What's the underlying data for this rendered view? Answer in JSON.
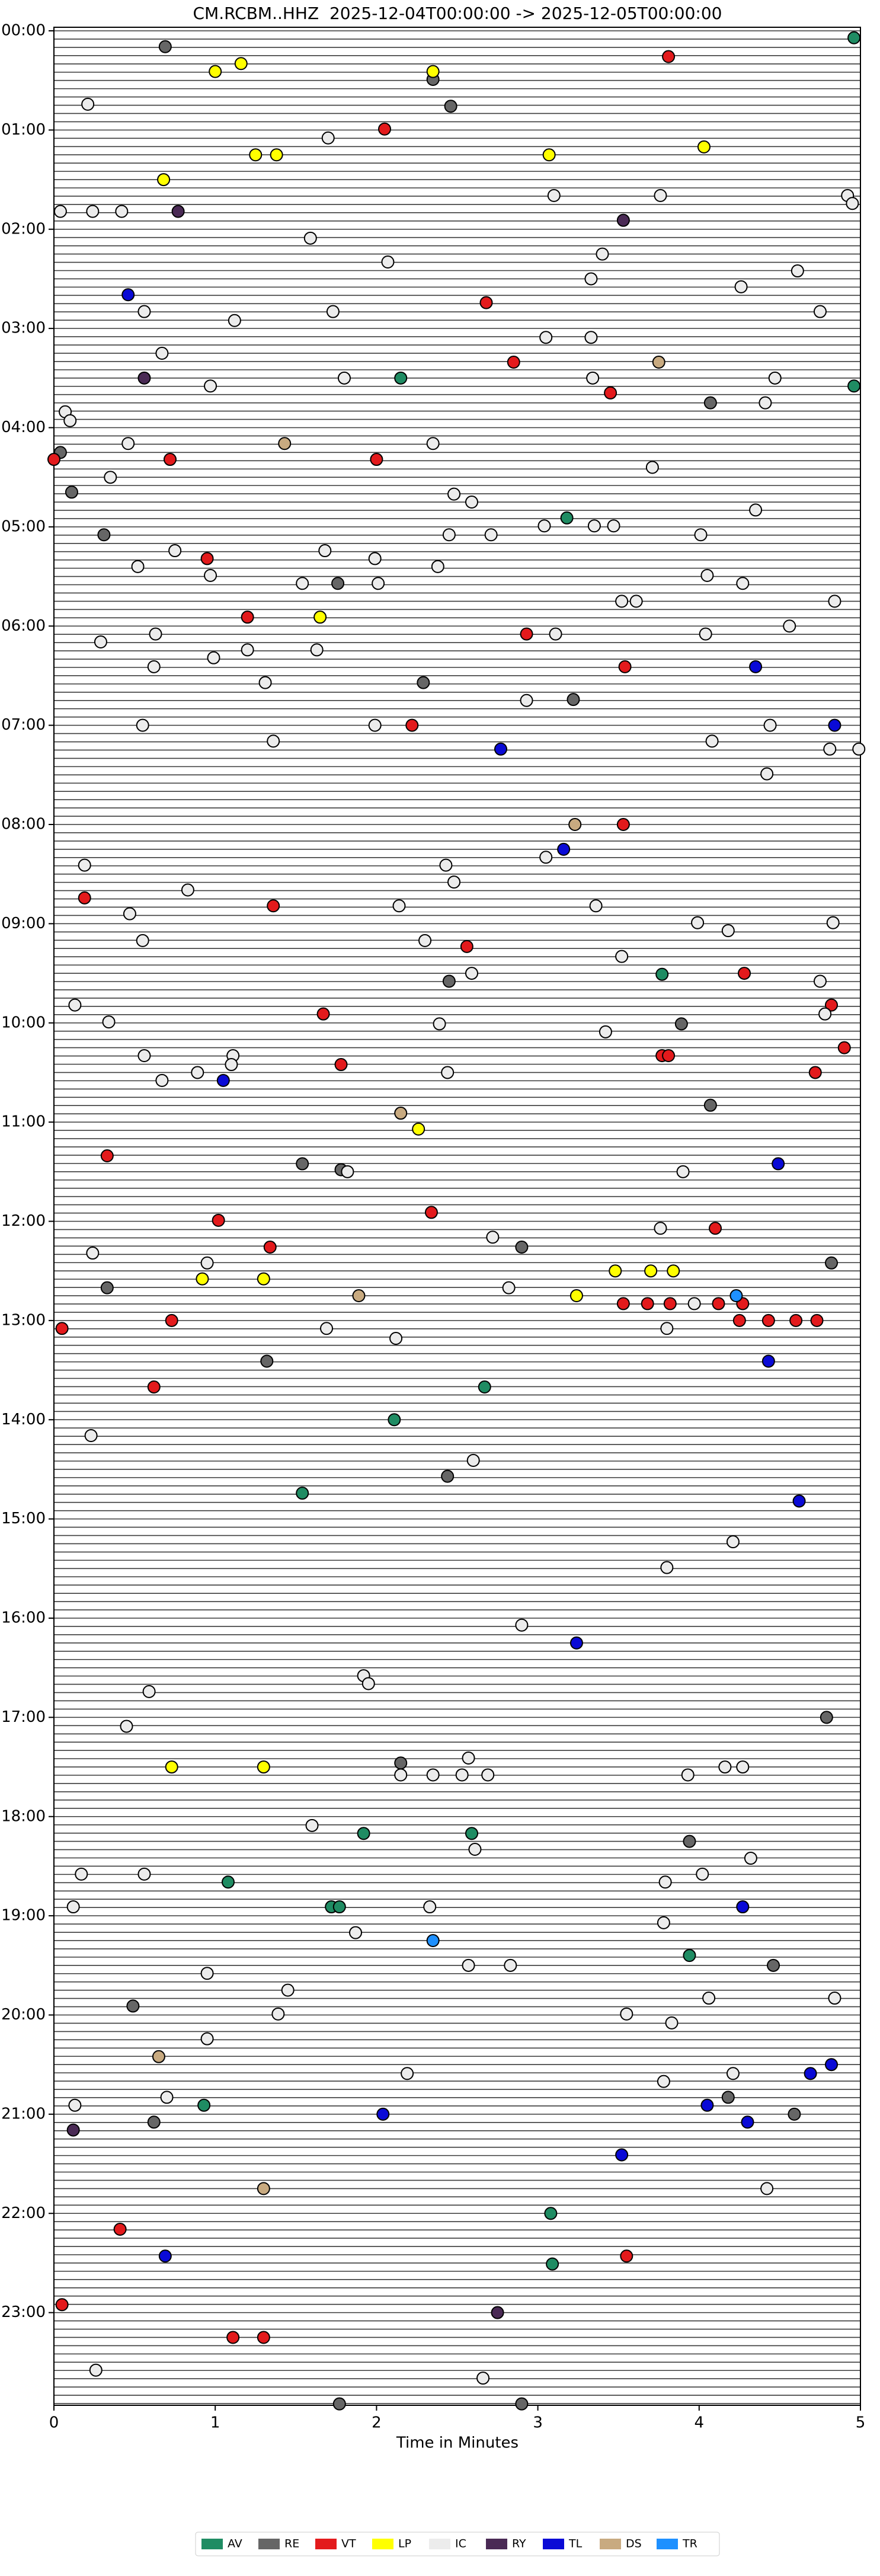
{
  "chart_data": {
    "type": "scatter",
    "title": "CM.RCBM..HHZ  2025-12-04T00:00:00 -> 2025-12-05T00:00:00",
    "xlabel": "Time in Minutes",
    "xlim": [
      0,
      5
    ],
    "xticks": [
      0,
      1,
      2,
      3,
      4,
      5
    ],
    "ylim": [
      24,
      0
    ],
    "yticks": [
      {
        "value": 0,
        "label": "00:00"
      },
      {
        "value": 1,
        "label": "01:00"
      },
      {
        "value": 2,
        "label": "02:00"
      },
      {
        "value": 3,
        "label": "03:00"
      },
      {
        "value": 4,
        "label": "04:00"
      },
      {
        "value": 5,
        "label": "05:00"
      },
      {
        "value": 6,
        "label": "06:00"
      },
      {
        "value": 7,
        "label": "07:00"
      },
      {
        "value": 8,
        "label": "08:00"
      },
      {
        "value": 9,
        "label": "09:00"
      },
      {
        "value": 10,
        "label": "10:00"
      },
      {
        "value": 11,
        "label": "11:00"
      },
      {
        "value": 12,
        "label": "12:00"
      },
      {
        "value": 13,
        "label": "13:00"
      },
      {
        "value": 14,
        "label": "14:00"
      },
      {
        "value": 15,
        "label": "15:00"
      },
      {
        "value": 16,
        "label": "16:00"
      },
      {
        "value": 17,
        "label": "17:00"
      },
      {
        "value": 18,
        "label": "18:00"
      },
      {
        "value": 19,
        "label": "19:00"
      },
      {
        "value": 20,
        "label": "20:00"
      },
      {
        "value": 21,
        "label": "21:00"
      },
      {
        "value": 22,
        "label": "22:00"
      },
      {
        "value": 23,
        "label": "23:00"
      }
    ],
    "legend": "lower center",
    "series": [
      {
        "name": "AV",
        "color": "#1f8c63",
        "x": [
          4.96,
          2.15,
          4.96,
          3.18,
          3.77,
          2.67,
          2.11,
          1.54,
          1.92,
          2.59,
          1.08,
          1.72,
          1.77,
          3.94,
          0.93,
          3.08,
          3.09
        ],
        "values": [
          0.07,
          3.5,
          3.58,
          4.91,
          9.51,
          13.67,
          14.0,
          14.74,
          18.17,
          18.17,
          18.66,
          18.91,
          18.91,
          19.4,
          20.91,
          22.0,
          22.51
        ]
      },
      {
        "name": "RE",
        "color": "#666666",
        "x": [
          0.69,
          2.35,
          2.46,
          4.07,
          0.04,
          0.11,
          0.31,
          1.76,
          2.29,
          3.22,
          2.45,
          3.89,
          4.07,
          1.54,
          1.78,
          0.33,
          2.9,
          4.82,
          1.32,
          2.44,
          4.79,
          2.15,
          3.94,
          0.49,
          4.46,
          4.18,
          0.62,
          4.59,
          1.77,
          2.9
        ],
        "values": [
          0.16,
          0.49,
          0.76,
          3.75,
          4.25,
          4.65,
          5.08,
          5.57,
          6.57,
          6.74,
          9.58,
          10.01,
          10.83,
          11.42,
          11.48,
          12.67,
          12.26,
          12.42,
          13.41,
          14.57,
          17.0,
          17.46,
          18.25,
          19.91,
          19.5,
          20.83,
          21.08,
          21.0,
          23.92,
          23.92
        ]
      },
      {
        "name": "VT",
        "color": "#e31a1c",
        "x": [
          3.81,
          2.05,
          2.68,
          2.85,
          3.45,
          0,
          0.72,
          2.0,
          0.95,
          1.2,
          2.93,
          3.54,
          2.22,
          3.53,
          0.19,
          1.36,
          2.56,
          4.28,
          4.82,
          1.67,
          4.9,
          3.77,
          3.81,
          1.78,
          4.72,
          0.33,
          2.34,
          1.02,
          4.1,
          1.34,
          3.53,
          3.68,
          3.82,
          4.12,
          4.27,
          4.25,
          4.43,
          4.6,
          4.73,
          0.05,
          0.73,
          0.62,
          0.41,
          3.55,
          0.05,
          1.11,
          1.3
        ],
        "values": [
          0.26,
          0.99,
          2.74,
          3.34,
          3.65,
          4.32,
          4.32,
          4.32,
          5.32,
          5.91,
          6.08,
          6.41,
          7.0,
          8.0,
          8.74,
          8.82,
          9.23,
          9.5,
          9.82,
          9.91,
          10.25,
          10.33,
          10.33,
          10.42,
          10.5,
          11.34,
          11.91,
          11.99,
          12.07,
          12.26,
          12.83,
          12.83,
          12.83,
          12.83,
          12.83,
          13.0,
          13.0,
          13.0,
          13.0,
          13.08,
          13.0,
          13.67,
          22.16,
          22.43,
          22.92,
          23.25,
          23.25
        ]
      },
      {
        "name": "LP",
        "color": "#ffff00",
        "x": [
          1.0,
          1.16,
          2.35,
          1.25,
          1.38,
          3.07,
          4.03,
          0.68,
          1.65,
          2.26,
          3.48,
          3.7,
          3.84,
          0.92,
          1.3,
          3.24,
          0.73,
          1.3
        ],
        "values": [
          0.41,
          0.33,
          0.41,
          1.25,
          1.25,
          1.25,
          1.17,
          1.5,
          5.91,
          11.07,
          12.5,
          12.5,
          12.5,
          12.58,
          12.58,
          12.75,
          17.5,
          17.5
        ]
      },
      {
        "name": "IC",
        "color": "#ececec",
        "x": [
          0.21,
          1.7,
          0.04,
          0.24,
          0.42,
          3.1,
          3.76,
          4.92,
          4.95,
          1.59,
          2.07,
          3.4,
          4.61,
          4.26,
          3.33,
          0.56,
          1.73,
          4.75,
          1.12,
          3.05,
          3.33,
          0.67,
          1.8,
          0.97,
          3.34,
          4.47,
          4.41,
          0.07,
          0.1,
          0.46,
          2.35,
          3.71,
          0.35,
          2.48,
          2.59,
          4.35,
          2.71,
          2.45,
          3.04,
          3.35,
          3.47,
          4.01,
          1.68,
          0.75,
          1.99,
          0.52,
          0.97,
          2.38,
          4.05,
          1.54,
          2.01,
          4.27,
          3.52,
          3.61,
          4.84,
          4.56,
          0.29,
          0.63,
          3.11,
          4.04,
          1.2,
          1.63,
          0.99,
          0.62,
          1.31,
          2.93,
          0.55,
          1.99,
          4.44,
          1.36,
          4.08,
          4.81,
          4.99,
          4.42,
          3.05,
          0.19,
          2.43,
          2.48,
          0.83,
          2.14,
          3.36,
          0.47,
          3.99,
          4.18,
          4.83,
          0.55,
          2.3,
          3.52,
          2.59,
          4.75,
          0.13,
          4.78,
          0.34,
          2.39,
          3.42,
          1.11,
          0.56,
          1.1,
          0.89,
          0.67,
          2.44,
          3.9,
          1.82,
          3.76,
          2.72,
          0.24,
          0.95,
          2.82,
          3.97,
          3.8,
          1.69,
          2.12,
          0.23,
          2.6,
          4.21,
          3.8,
          2.9,
          0.59,
          1.92,
          1.95,
          0.45,
          2.57,
          2.15,
          2.35,
          2.53,
          2.69,
          3.93,
          4.16,
          4.27,
          1.6,
          2.61,
          4.32,
          0.17,
          0.56,
          3.79,
          4.02,
          0.12,
          2.33,
          3.78,
          1.87,
          2.57,
          2.83,
          0.95,
          1.45,
          4.06,
          4.84,
          1.39,
          3.55,
          3.83,
          0.95,
          2.19,
          4.21,
          3.78,
          0.7,
          0.13,
          4.42,
          0.26,
          2.66
        ],
        "values": [
          0.74,
          1.08,
          1.82,
          1.82,
          1.82,
          1.66,
          1.66,
          1.66,
          1.74,
          2.09,
          2.33,
          2.25,
          2.42,
          2.58,
          2.5,
          2.83,
          2.83,
          2.83,
          2.92,
          3.09,
          3.09,
          3.25,
          3.5,
          3.58,
          3.5,
          3.5,
          3.75,
          3.84,
          3.93,
          4.16,
          4.16,
          4.4,
          4.5,
          4.67,
          4.75,
          4.83,
          5.08,
          5.08,
          4.99,
          4.99,
          4.99,
          5.08,
          5.24,
          5.24,
          5.32,
          5.4,
          5.49,
          5.4,
          5.49,
          5.57,
          5.57,
          5.57,
          5.75,
          5.75,
          5.75,
          6.0,
          6.16,
          6.08,
          6.08,
          6.08,
          6.24,
          6.24,
          6.32,
          6.41,
          6.57,
          6.75,
          7.0,
          7.0,
          7.0,
          7.16,
          7.16,
          7.24,
          7.24,
          7.49,
          8.33,
          8.41,
          8.41,
          8.58,
          8.66,
          8.82,
          8.82,
          8.9,
          8.99,
          9.07,
          8.99,
          9.17,
          9.17,
          9.33,
          9.5,
          9.58,
          9.82,
          9.91,
          9.99,
          10.01,
          10.09,
          10.33,
          10.33,
          10.42,
          10.5,
          10.58,
          10.5,
          11.5,
          11.5,
          12.07,
          12.16,
          12.32,
          12.42,
          12.67,
          12.83,
          13.08,
          13.08,
          13.18,
          14.16,
          14.41,
          15.23,
          15.49,
          16.07,
          16.74,
          16.58,
          16.66,
          17.09,
          17.41,
          17.58,
          17.58,
          17.58,
          17.58,
          17.58,
          17.5,
          17.5,
          18.09,
          18.33,
          18.42,
          18.58,
          18.58,
          18.66,
          18.58,
          18.91,
          18.91,
          19.07,
          19.17,
          19.5,
          19.5,
          19.58,
          19.75,
          19.83,
          19.83,
          19.99,
          19.99,
          20.08,
          20.24,
          20.59,
          20.59,
          20.67,
          20.83,
          20.91,
          21.75,
          23.58,
          23.66
        ]
      },
      {
        "name": "RY",
        "color": "#4a2a55",
        "x": [
          0.77,
          3.53,
          0.56,
          2.75,
          0.12
        ],
        "values": [
          1.82,
          1.91,
          3.5,
          23.0,
          21.16
        ]
      },
      {
        "name": "TL",
        "color": "#0a0ad6",
        "x": [
          0.46,
          3.16,
          2.77,
          4.84,
          4.35,
          1.05,
          4.49,
          4.43,
          4.62,
          3.24,
          4.27,
          4.05,
          4.69,
          4.82,
          2.04,
          4.3,
          3.52,
          0.69
        ],
        "values": [
          2.66,
          8.25,
          7.24,
          7.0,
          6.41,
          10.58,
          11.42,
          13.41,
          14.82,
          16.25,
          18.91,
          20.91,
          20.59,
          20.5,
          21.0,
          21.08,
          21.41,
          22.43
        ]
      },
      {
        "name": "DS",
        "color": "#c8aa80",
        "x": [
          3.75,
          1.43,
          3.23,
          2.15,
          1.89,
          0.65,
          1.3
        ],
        "values": [
          3.34,
          4.16,
          8.0,
          10.91,
          12.75,
          20.42,
          21.75
        ]
      },
      {
        "name": "TR",
        "color": "#1e90ff",
        "x": [
          4.23,
          2.35
        ],
        "values": [
          12.75,
          19.25
        ]
      }
    ]
  }
}
